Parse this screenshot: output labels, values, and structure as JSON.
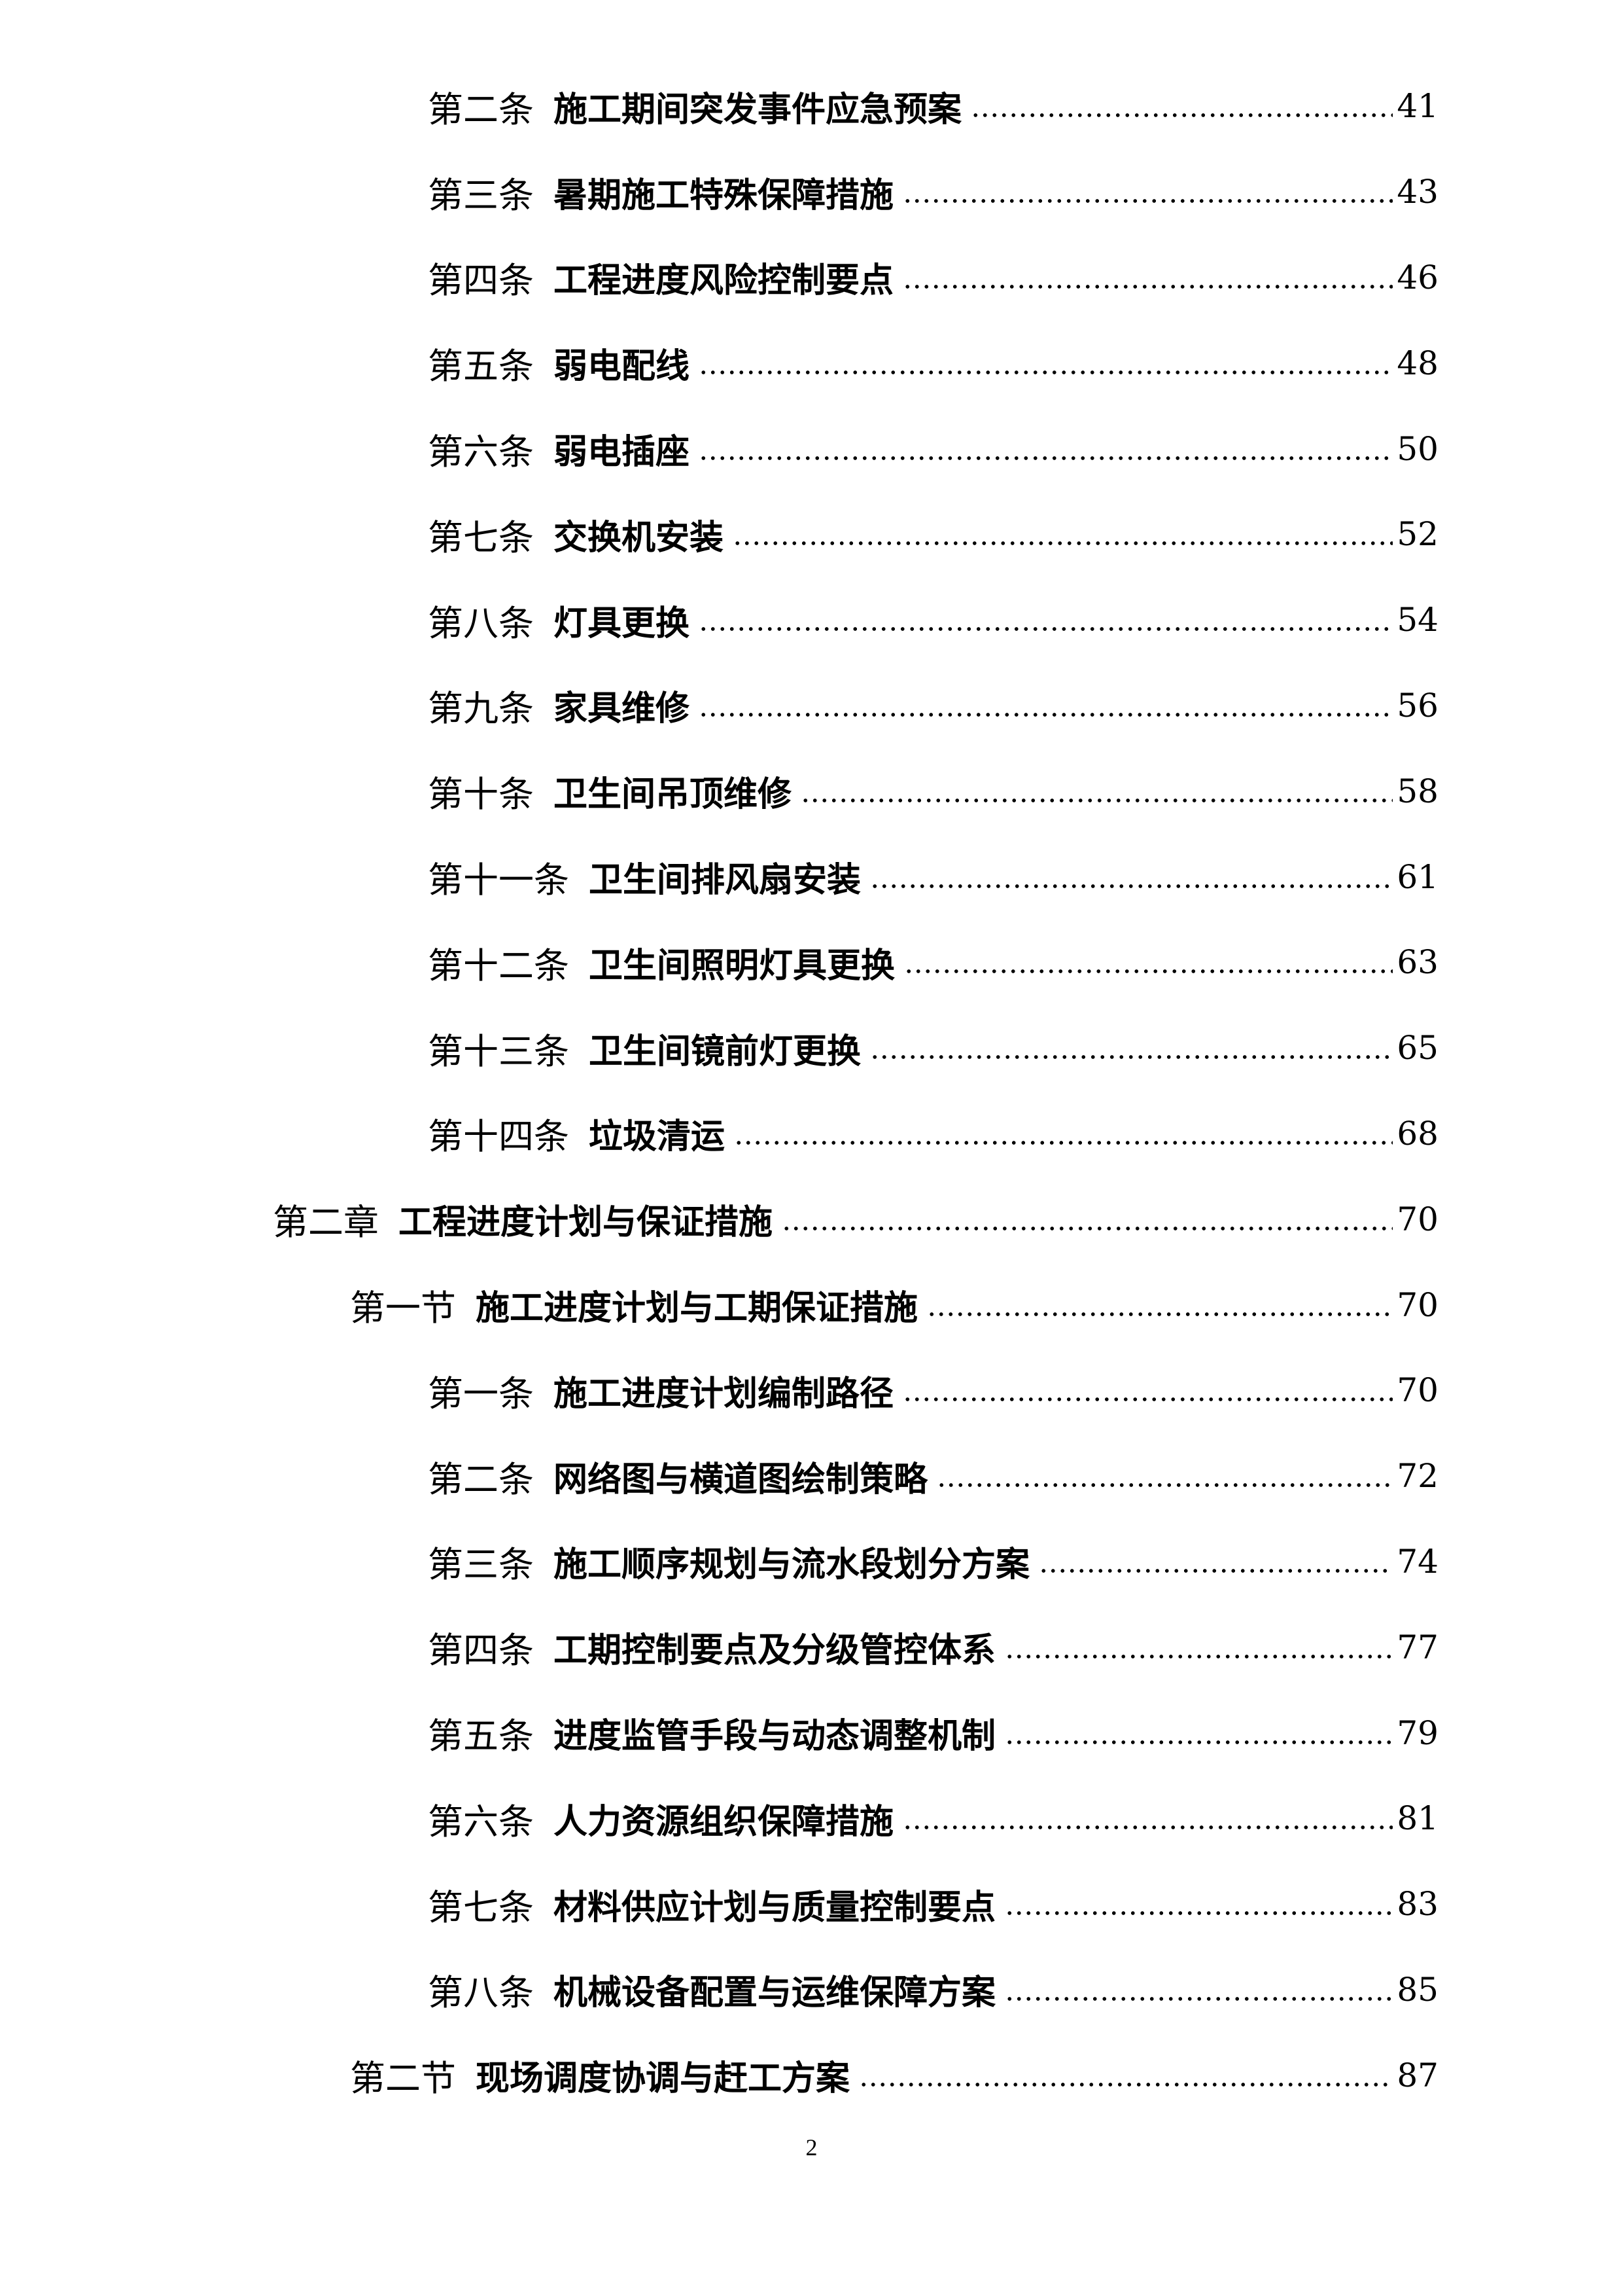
{
  "toc": [
    {
      "level": 3,
      "prefix": "第二条",
      "title": "施工期间突发事件应急预案",
      "page": "41"
    },
    {
      "level": 3,
      "prefix": "第三条",
      "title": "暑期施工特殊保障措施",
      "page": "43"
    },
    {
      "level": 3,
      "prefix": "第四条",
      "title": "工程进度风险控制要点",
      "page": "46"
    },
    {
      "level": 3,
      "prefix": "第五条",
      "title": "弱电配线",
      "page": "48"
    },
    {
      "level": 3,
      "prefix": "第六条",
      "title": "弱电插座",
      "page": "50"
    },
    {
      "level": 3,
      "prefix": "第七条",
      "title": "交换机安装",
      "page": "52"
    },
    {
      "level": 3,
      "prefix": "第八条",
      "title": "灯具更换",
      "page": "54"
    },
    {
      "level": 3,
      "prefix": "第九条",
      "title": "家具维修",
      "page": "56"
    },
    {
      "level": 3,
      "prefix": "第十条",
      "title": "卫生间吊顶维修",
      "page": "58"
    },
    {
      "level": 3,
      "prefix": "第十一条",
      "title": "卫生间排风扇安装",
      "page": "61"
    },
    {
      "level": 3,
      "prefix": "第十二条",
      "title": "卫生间照明灯具更换",
      "page": "63"
    },
    {
      "level": 3,
      "prefix": "第十三条",
      "title": "卫生间镜前灯更换",
      "page": "65"
    },
    {
      "level": 3,
      "prefix": "第十四条",
      "title": "垃圾清运",
      "page": "68"
    },
    {
      "level": 1,
      "prefix": "第二章",
      "title": "工程进度计划与保证措施",
      "page": "70"
    },
    {
      "level": 2,
      "prefix": "第一节",
      "title": "施工进度计划与工期保证措施",
      "page": "70"
    },
    {
      "level": 3,
      "prefix": "第一条",
      "title": "施工进度计划编制路径",
      "page": "70"
    },
    {
      "level": 3,
      "prefix": "第二条",
      "title": "网络图与横道图绘制策略",
      "page": "72"
    },
    {
      "level": 3,
      "prefix": "第三条",
      "title": "施工顺序规划与流水段划分方案",
      "page": "74"
    },
    {
      "level": 3,
      "prefix": "第四条",
      "title": "工期控制要点及分级管控体系",
      "page": "77"
    },
    {
      "level": 3,
      "prefix": "第五条",
      "title": "进度监管手段与动态调整机制",
      "page": "79"
    },
    {
      "level": 3,
      "prefix": "第六条",
      "title": "人力资源组织保障措施",
      "page": "81"
    },
    {
      "level": 3,
      "prefix": "第七条",
      "title": "材料供应计划与质量控制要点",
      "page": "83"
    },
    {
      "level": 3,
      "prefix": "第八条",
      "title": "机械设备配置与运维保障方案",
      "page": "85"
    },
    {
      "level": 2,
      "prefix": "第二节",
      "title": "现场调度协调与赶工方案",
      "page": "87"
    }
  ],
  "footer": {
    "page_number": "2"
  }
}
